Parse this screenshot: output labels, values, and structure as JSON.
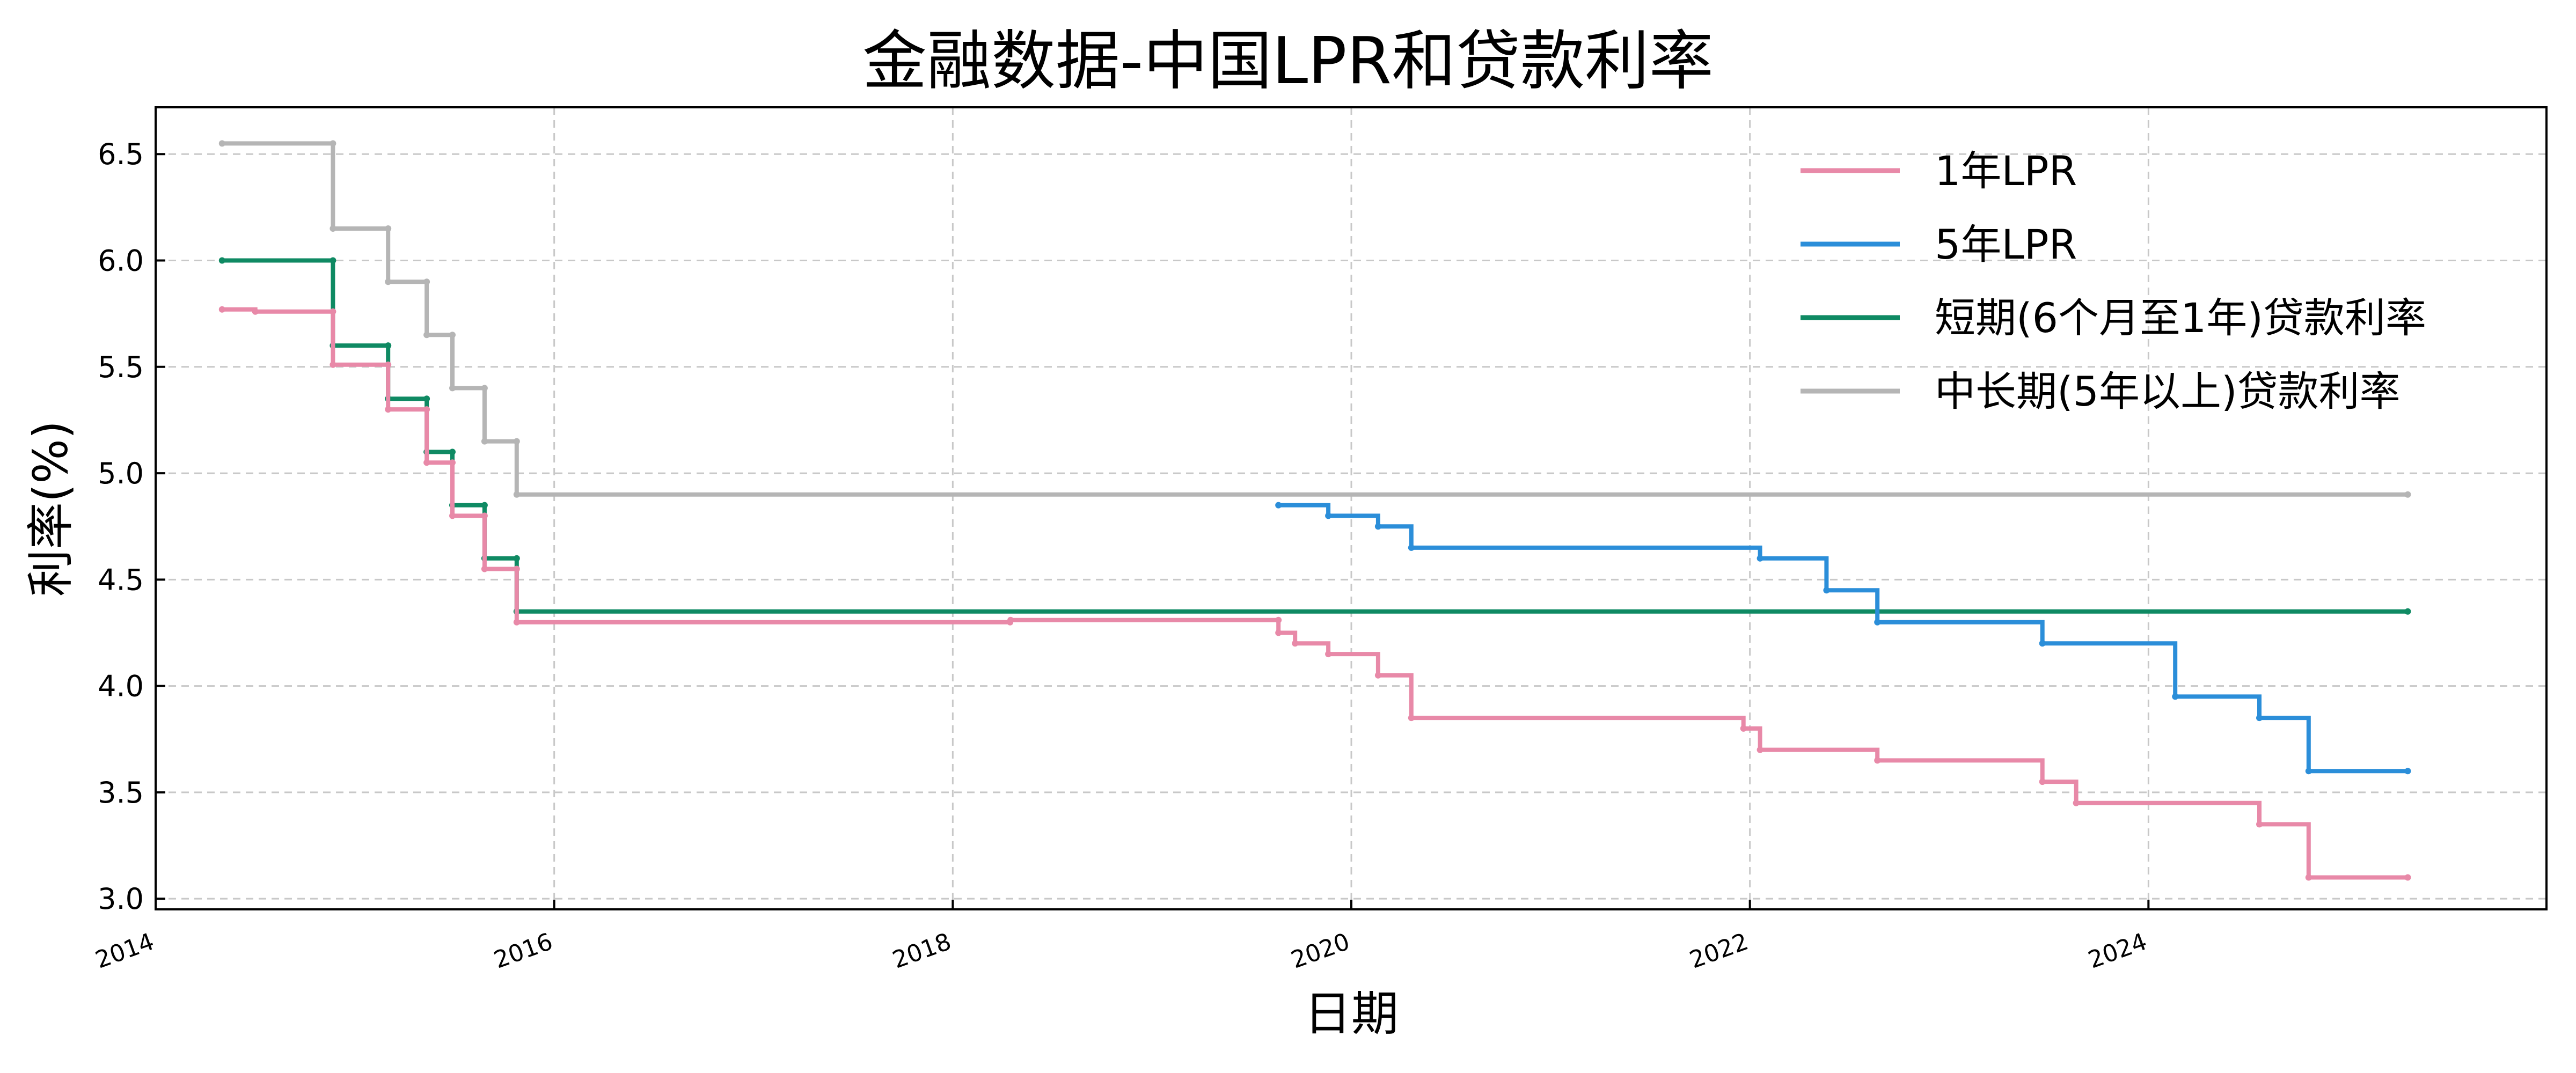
{
  "chart_data": {
    "type": "line",
    "title": "金融数据-中国LPR和贷款利率",
    "xlabel": "日期",
    "ylabel": "利率(%)",
    "xlim": [
      "2014-01-01",
      "2025-12-31"
    ],
    "ylim": [
      2.95,
      6.72
    ],
    "xticks": [
      "2014",
      "2016",
      "2018",
      "2020",
      "2022",
      "2024"
    ],
    "yticks": [
      "3.0",
      "3.5",
      "4.0",
      "4.5",
      "5.0",
      "5.5",
      "6.0",
      "6.5"
    ],
    "grid": true,
    "legend_position": "top-right",
    "series": [
      {
        "name": "1年LPR",
        "color": "#e889a8",
        "points": [
          [
            "2014-05-01",
            5.77
          ],
          [
            "2014-07-01",
            5.76
          ],
          [
            "2014-11-22",
            5.76
          ],
          [
            "2014-11-22",
            5.51
          ],
          [
            "2015-03-01",
            5.51
          ],
          [
            "2015-03-01",
            5.3
          ],
          [
            "2015-05-11",
            5.3
          ],
          [
            "2015-05-11",
            5.05
          ],
          [
            "2015-06-28",
            5.05
          ],
          [
            "2015-06-28",
            4.8
          ],
          [
            "2015-08-26",
            4.8
          ],
          [
            "2015-08-26",
            4.55
          ],
          [
            "2015-10-24",
            4.55
          ],
          [
            "2015-10-24",
            4.3
          ],
          [
            "2018-04-15",
            4.3
          ],
          [
            "2018-04-16",
            4.31
          ],
          [
            "2019-08-20",
            4.31
          ],
          [
            "2019-08-20",
            4.25
          ],
          [
            "2019-09-20",
            4.2
          ],
          [
            "2019-11-20",
            4.15
          ],
          [
            "2020-02-20",
            4.05
          ],
          [
            "2020-04-20",
            3.85
          ],
          [
            "2021-12-20",
            3.8
          ],
          [
            "2022-01-20",
            3.7
          ],
          [
            "2022-08-22",
            3.65
          ],
          [
            "2023-06-20",
            3.55
          ],
          [
            "2023-08-21",
            3.45
          ],
          [
            "2024-07-22",
            3.35
          ],
          [
            "2024-10-21",
            3.1
          ],
          [
            "2025-04-20",
            3.1
          ]
        ]
      },
      {
        "name": "5年LPR",
        "color": "#2b8ed9",
        "points": [
          [
            "2019-08-20",
            4.85
          ],
          [
            "2019-11-20",
            4.8
          ],
          [
            "2020-02-20",
            4.75
          ],
          [
            "2020-04-20",
            4.65
          ],
          [
            "2022-01-20",
            4.6
          ],
          [
            "2022-05-20",
            4.45
          ],
          [
            "2022-08-22",
            4.3
          ],
          [
            "2023-06-20",
            4.2
          ],
          [
            "2024-02-20",
            3.95
          ],
          [
            "2024-07-22",
            3.85
          ],
          [
            "2024-10-21",
            3.6
          ],
          [
            "2025-04-20",
            3.6
          ]
        ]
      },
      {
        "name": "短期(6个月至1年)贷款利率",
        "color": "#0f8a63",
        "points": [
          [
            "2014-05-01",
            6.0
          ],
          [
            "2014-11-22",
            6.0
          ],
          [
            "2014-11-22",
            5.6
          ],
          [
            "2015-03-01",
            5.6
          ],
          [
            "2015-03-01",
            5.35
          ],
          [
            "2015-05-11",
            5.35
          ],
          [
            "2015-05-11",
            5.1
          ],
          [
            "2015-06-28",
            5.1
          ],
          [
            "2015-06-28",
            4.85
          ],
          [
            "2015-08-26",
            4.85
          ],
          [
            "2015-08-26",
            4.6
          ],
          [
            "2015-10-24",
            4.6
          ],
          [
            "2015-10-24",
            4.35
          ],
          [
            "2025-04-20",
            4.35
          ]
        ]
      },
      {
        "name": "中长期(5年以上)贷款利率",
        "color": "#b5b5b5",
        "points": [
          [
            "2014-05-01",
            6.55
          ],
          [
            "2014-11-22",
            6.55
          ],
          [
            "2014-11-22",
            6.15
          ],
          [
            "2015-03-01",
            6.15
          ],
          [
            "2015-03-01",
            5.9
          ],
          [
            "2015-05-11",
            5.9
          ],
          [
            "2015-05-11",
            5.65
          ],
          [
            "2015-06-28",
            5.65
          ],
          [
            "2015-06-28",
            5.4
          ],
          [
            "2015-08-26",
            5.4
          ],
          [
            "2015-08-26",
            5.15
          ],
          [
            "2015-10-24",
            5.15
          ],
          [
            "2015-10-24",
            4.9
          ],
          [
            "2025-04-20",
            4.9
          ]
        ]
      }
    ]
  }
}
